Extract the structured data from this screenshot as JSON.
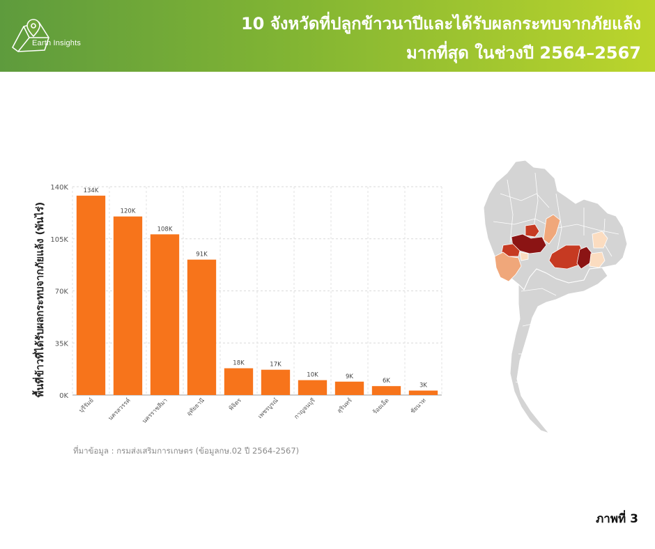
{
  "header": {
    "logo_text": "Earth Insights",
    "title_line1": "10 จังหวัดที่ปลูกข้าวนาปีและได้รับผลกระทบจากภัยแล้ง",
    "title_line2": "มากที่สุด ในช่วงปี 2564–2567"
  },
  "colors": {
    "header_start": "#5e9b3d",
    "header_end": "#bcd52c",
    "bar": "#f7741b",
    "map_base": "#d4d4d4",
    "map_highlight_dark": "#8b1414",
    "map_highlight_mid": "#c63a22",
    "map_highlight_light": "#f0a77a",
    "map_highlight_pale": "#fbdcc0"
  },
  "chart_data": {
    "type": "bar",
    "title": "",
    "xlabel": "",
    "ylabel": "พื้นที่ข้าวที่ได้รับผลกระทบจากภัยแล้ง (พันไร่)",
    "ylim": [
      0,
      140000
    ],
    "yticks": [
      0,
      35000,
      70000,
      105000,
      140000
    ],
    "ytick_labels": [
      "0K",
      "35K",
      "70K",
      "105K",
      "140K"
    ],
    "grid": true,
    "categories": [
      "บุรีรัมย์",
      "นครสวรรค์",
      "นครราชสีมา",
      "อุทัยธานี",
      "พิจิตร",
      "เพชรบูรณ์",
      "กาญจนบุรี",
      "สุรินทร์",
      "ร้อยเอ็ด",
      "ชัยนาท"
    ],
    "values": [
      134000,
      120000,
      108000,
      91000,
      18000,
      17000,
      10000,
      9000,
      6000,
      3000
    ],
    "data_labels": [
      "134K",
      "120K",
      "108K",
      "91K",
      "18K",
      "17K",
      "10K",
      "9K",
      "6K",
      "3K"
    ]
  },
  "source_note": "ที่มาข้อมูล : กรมส่งเสริมการเกษตร (ข้อมูลกษ.02 ปี 2564-2567)",
  "figure_label": "ภาพที่ 3"
}
